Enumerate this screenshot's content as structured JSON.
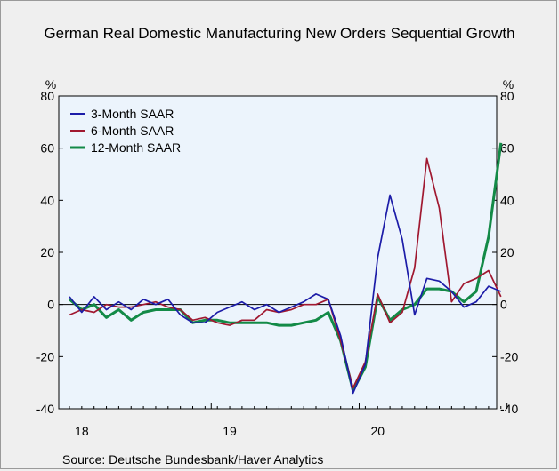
{
  "title": "German Real Domestic Manufacturing New Orders Sequential Growth",
  "source": "Source:   Deutsche Bundesbank/Haver Analytics",
  "chart_data": {
    "type": "line",
    "title": "German Real Domestic Manufacturing New Orders Sequential Growth",
    "ylabel_left": "%",
    "ylabel_right": "%",
    "ylim": [
      -40,
      80
    ],
    "yticks": [
      -40,
      -20,
      0,
      20,
      40,
      60,
      80
    ],
    "x_labels": [
      "18",
      "19",
      "20"
    ],
    "x_range": [
      "2018-01",
      "2021-05"
    ],
    "grid": false,
    "zero_line": true,
    "legend_position": "top-left",
    "series": [
      {
        "name": "3-Month SAAR",
        "color": "#1c1ca8",
        "values": [
          3,
          -3,
          3,
          -2,
          1,
          -2,
          2,
          0,
          2,
          -4,
          -7,
          -7,
          -3,
          -1,
          1,
          -2,
          0,
          -3,
          -1,
          1,
          4,
          2,
          -12,
          -34,
          -23,
          18,
          42,
          25,
          -4,
          10,
          9,
          5,
          -1,
          1,
          7,
          5
        ]
      },
      {
        "name": "6-Month SAAR",
        "color": "#a01830",
        "values": [
          -4,
          -2,
          -3,
          0,
          -1,
          -1,
          0,
          1,
          -1,
          -2,
          -6,
          -5,
          -7,
          -8,
          -6,
          -6,
          -2,
          -3,
          -2,
          0,
          0,
          2,
          -14,
          -32,
          -22,
          4,
          -7,
          -3,
          14,
          56,
          37,
          1,
          8,
          10,
          13,
          3
        ]
      },
      {
        "name": "12-Month SAAR",
        "color": "#138a47",
        "values": [
          2,
          -2,
          0,
          -5,
          -2,
          -6,
          -3,
          -2,
          -2,
          -2,
          -7,
          -6,
          -6,
          -7,
          -7,
          -7,
          -7,
          -8,
          -8,
          -7,
          -6,
          -3,
          -14,
          -33,
          -24,
          3,
          -6,
          -2,
          0,
          6,
          6,
          5,
          1,
          5,
          26,
          62
        ]
      }
    ]
  }
}
